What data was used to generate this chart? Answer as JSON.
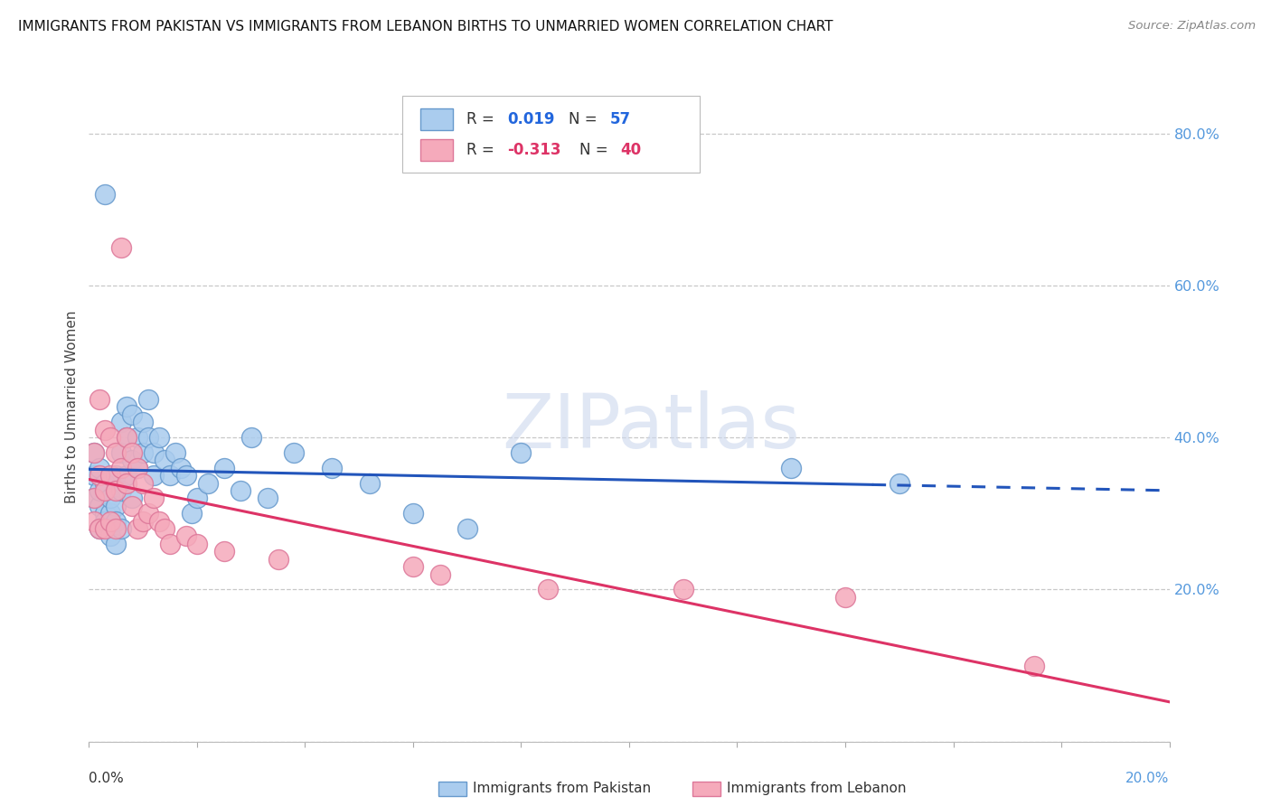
{
  "title": "IMMIGRANTS FROM PAKISTAN VS IMMIGRANTS FROM LEBANON BIRTHS TO UNMARRIED WOMEN CORRELATION CHART",
  "source": "Source: ZipAtlas.com",
  "ylabel": "Births to Unmarried Women",
  "xlim": [
    0.0,
    0.2
  ],
  "ylim": [
    0.0,
    0.88
  ],
  "ytick_values": [
    0.0,
    0.2,
    0.4,
    0.6,
    0.8
  ],
  "grid_color": "#c8c8c8",
  "background_color": "#ffffff",
  "pakistan_color": "#aaccee",
  "pakistan_edge": "#6699cc",
  "lebanon_color": "#f5aabb",
  "lebanon_edge": "#dd7799",
  "pakistan_line_color": "#2255bb",
  "lebanon_line_color": "#dd3366",
  "pakistan_scatter_x": [
    0.001,
    0.001,
    0.001,
    0.002,
    0.002,
    0.002,
    0.002,
    0.003,
    0.003,
    0.003,
    0.003,
    0.004,
    0.004,
    0.004,
    0.005,
    0.005,
    0.005,
    0.005,
    0.006,
    0.006,
    0.006,
    0.006,
    0.007,
    0.007,
    0.007,
    0.008,
    0.008,
    0.008,
    0.009,
    0.009,
    0.01,
    0.01,
    0.011,
    0.011,
    0.012,
    0.012,
    0.013,
    0.014,
    0.015,
    0.016,
    0.017,
    0.018,
    0.019,
    0.02,
    0.022,
    0.025,
    0.028,
    0.03,
    0.033,
    0.038,
    0.045,
    0.052,
    0.06,
    0.07,
    0.08,
    0.13,
    0.15
  ],
  "pakistan_scatter_y": [
    0.32,
    0.35,
    0.38,
    0.28,
    0.31,
    0.33,
    0.36,
    0.72,
    0.3,
    0.29,
    0.34,
    0.3,
    0.32,
    0.27,
    0.31,
    0.29,
    0.35,
    0.26,
    0.42,
    0.38,
    0.33,
    0.28,
    0.44,
    0.4,
    0.35,
    0.43,
    0.37,
    0.32,
    0.4,
    0.36,
    0.42,
    0.38,
    0.45,
    0.4,
    0.38,
    0.35,
    0.4,
    0.37,
    0.35,
    0.38,
    0.36,
    0.35,
    0.3,
    0.32,
    0.34,
    0.36,
    0.33,
    0.4,
    0.32,
    0.38,
    0.36,
    0.34,
    0.3,
    0.28,
    0.38,
    0.36,
    0.34
  ],
  "lebanon_scatter_x": [
    0.001,
    0.001,
    0.001,
    0.002,
    0.002,
    0.002,
    0.003,
    0.003,
    0.003,
    0.004,
    0.004,
    0.004,
    0.005,
    0.005,
    0.005,
    0.006,
    0.006,
    0.007,
    0.007,
    0.008,
    0.008,
    0.009,
    0.009,
    0.01,
    0.01,
    0.011,
    0.012,
    0.013,
    0.014,
    0.015,
    0.018,
    0.02,
    0.025,
    0.035,
    0.06,
    0.065,
    0.085,
    0.11,
    0.14,
    0.175
  ],
  "lebanon_scatter_y": [
    0.38,
    0.32,
    0.29,
    0.45,
    0.35,
    0.28,
    0.41,
    0.33,
    0.28,
    0.4,
    0.35,
    0.29,
    0.38,
    0.33,
    0.28,
    0.65,
    0.36,
    0.4,
    0.34,
    0.38,
    0.31,
    0.36,
    0.28,
    0.34,
    0.29,
    0.3,
    0.32,
    0.29,
    0.28,
    0.26,
    0.27,
    0.26,
    0.25,
    0.24,
    0.23,
    0.22,
    0.2,
    0.2,
    0.19,
    0.1
  ]
}
